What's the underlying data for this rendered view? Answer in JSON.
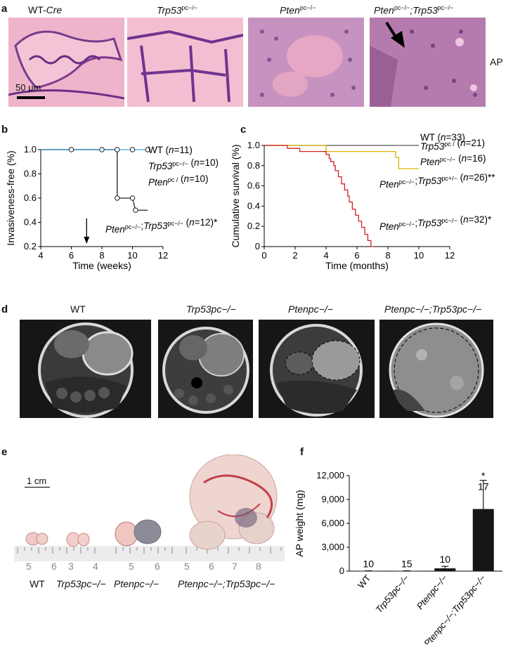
{
  "panels": {
    "a": "a",
    "b": "b",
    "c": "c",
    "d": "d",
    "e": "e",
    "f": "f"
  },
  "panel_a": {
    "genotypes": [
      {
        "main": "WT-",
        "italic": "Cre",
        "sup": ""
      },
      {
        "main": "",
        "italic": "Trp53",
        "sup": "pc−/−"
      },
      {
        "main": "",
        "italic": "Pten",
        "sup": "pc−/−"
      },
      {
        "main": "",
        "italic": "Pten",
        "sup": "pc−/−",
        "italic2": ";Trp53",
        "sup2": "pc−/−"
      }
    ],
    "scale_bar": "50 μm",
    "side_label": "AP"
  },
  "chart_data": [
    {
      "panel": "b",
      "type": "line",
      "ylabel": "Invasiveness-free (%)",
      "xlabel": "Time (weeks)",
      "xlim": [
        4,
        12
      ],
      "ylim": [
        0.2,
        1.0
      ],
      "xticks": [
        4,
        6,
        8,
        10,
        12
      ],
      "yticks": [
        0.2,
        0.4,
        0.6,
        0.8,
        1.0
      ],
      "series": [
        {
          "name": "WT (n=11)",
          "color": "#3ea6dc",
          "points": [
            [
              4,
              1.0
            ],
            [
              6,
              1.0
            ],
            [
              8,
              1.0
            ],
            [
              9,
              1.0
            ],
            [
              10,
              1.0
            ],
            [
              11,
              1.0
            ]
          ]
        },
        {
          "name": "Trp53pc / (n=10)",
          "color": "#222222",
          "points": [
            [
              4,
              1.0
            ],
            [
              6,
              1.0
            ],
            [
              8,
              1.0
            ],
            [
              9,
              1.0
            ]
          ]
        },
        {
          "name": "Ptenpc / (n=10)",
          "color": "#222222",
          "points": [
            [
              4,
              1.0
            ],
            [
              9,
              1.0
            ]
          ]
        },
        {
          "name": "Ptenpc−/−;Trp53pc−/− (n=12)*",
          "color": "#222222",
          "points": [
            [
              9.0,
              1.0
            ],
            [
              9.0,
              0.6
            ],
            [
              10.0,
              0.6
            ],
            [
              10.2,
              0.5
            ],
            [
              11.0,
              0.5
            ]
          ]
        }
      ],
      "legend": [
        "WT (n=11)",
        "Trp53pc−/− (n=10)",
        "Ptenpc / (n=10)",
        "Ptenpc−/−;Trp53pc−/− (n=12)*"
      ],
      "arrow_at_week": 7
    },
    {
      "panel": "c",
      "type": "line",
      "ylabel": "Cumulative survival (%)",
      "xlabel": "Time (months)",
      "xlim": [
        0,
        12
      ],
      "ylim": [
        0,
        1.0
      ],
      "xticks": [
        0,
        2,
        4,
        6,
        8,
        10,
        12
      ],
      "yticks": [
        0,
        0.2,
        0.4,
        0.6,
        0.8,
        1.0
      ],
      "series": [
        {
          "name": "WT (n=33)",
          "color": "#555555",
          "points": [
            [
              0,
              1.0
            ],
            [
              10,
              1.0
            ]
          ]
        },
        {
          "name": "Trp53pc / (n=21)",
          "color": "#555555",
          "points": [
            [
              0,
              1.0
            ],
            [
              10,
              1.0
            ]
          ]
        },
        {
          "name": "Ptenpc−/− (n=16)",
          "color": "#e0b400",
          "points": [
            [
              0,
              1.0
            ],
            [
              4.0,
              1.0
            ],
            [
              4.0,
              0.94
            ],
            [
              8.5,
              0.94
            ],
            [
              8.5,
              0.88
            ],
            [
              8.7,
              0.88
            ],
            [
              8.7,
              0.77
            ],
            [
              10,
              0.77
            ]
          ]
        },
        {
          "name": "Ptenpc−/−;Trp53pc+/− (n=26)**",
          "color": "#e0b400",
          "points": []
        },
        {
          "name": "Ptenpc−/−;Trp53pc−/− (n=32)*",
          "color": "#d42020",
          "points": [
            [
              0,
              1.0
            ],
            [
              1.5,
              1.0
            ],
            [
              1.5,
              0.97
            ],
            [
              2.3,
              0.97
            ],
            [
              2.3,
              0.94
            ],
            [
              4.0,
              0.94
            ],
            [
              4.0,
              0.91
            ],
            [
              4.2,
              0.91
            ],
            [
              4.2,
              0.87
            ],
            [
              4.3,
              0.87
            ],
            [
              4.3,
              0.84
            ],
            [
              4.5,
              0.84
            ],
            [
              4.5,
              0.8
            ],
            [
              4.6,
              0.8
            ],
            [
              4.6,
              0.75
            ],
            [
              4.8,
              0.75
            ],
            [
              4.8,
              0.69
            ],
            [
              5.0,
              0.69
            ],
            [
              5.0,
              0.62
            ],
            [
              5.2,
              0.62
            ],
            [
              5.2,
              0.56
            ],
            [
              5.4,
              0.56
            ],
            [
              5.4,
              0.5
            ],
            [
              5.5,
              0.5
            ],
            [
              5.5,
              0.44
            ],
            [
              5.7,
              0.44
            ],
            [
              5.7,
              0.37
            ],
            [
              5.9,
              0.37
            ],
            [
              5.9,
              0.31
            ],
            [
              6.1,
              0.31
            ],
            [
              6.1,
              0.25
            ],
            [
              6.3,
              0.25
            ],
            [
              6.3,
              0.19
            ],
            [
              6.5,
              0.19
            ],
            [
              6.5,
              0.12
            ],
            [
              6.7,
              0.12
            ],
            [
              6.7,
              0.06
            ],
            [
              6.9,
              0.06
            ],
            [
              6.9,
              0.0
            ],
            [
              7.1,
              0.0
            ]
          ]
        }
      ],
      "legend": [
        "WT (n=33)",
        "Trp53pc / (n=21)",
        "Ptenpc−/− (n=16)",
        "Ptenpc−/−;Trp53pc+/− (n=26)**",
        "Ptenpc−/−;Trp53pc−/− (n=32)*"
      ]
    },
    {
      "panel": "f",
      "type": "bar",
      "ylabel": "AP weight (mg)",
      "categories": [
        "WT",
        "Trp53pc−/−",
        "Ptenpc−/−",
        "Ptenpc−/−;Trp53pc−/−"
      ],
      "values": [
        30,
        40,
        350,
        7800
      ],
      "errors": [
        10,
        10,
        250,
        3600
      ],
      "n": [
        "10",
        "15",
        "10",
        "17"
      ],
      "ylim": [
        0,
        12000
      ],
      "yticks": [
        "0",
        "3,000",
        "6,000",
        "9,000",
        "12,000"
      ],
      "significance": "*"
    }
  ],
  "panel_d": {
    "genotypes": [
      "WT",
      "Trp53pc−/−",
      "Ptenpc−/−",
      "Ptenpc−/−;Trp53pc−/−"
    ]
  },
  "panel_e": {
    "scale_bar": "1 cm",
    "genotypes": [
      "WT",
      "Trp53pc−/−",
      "Ptenpc−/−",
      "Ptenpc−/−;Trp53pc−/−"
    ],
    "ruler_numbers": [
      "5",
      "6",
      "3",
      "4",
      "5",
      "6",
      "5",
      "6",
      "7",
      "8"
    ]
  }
}
